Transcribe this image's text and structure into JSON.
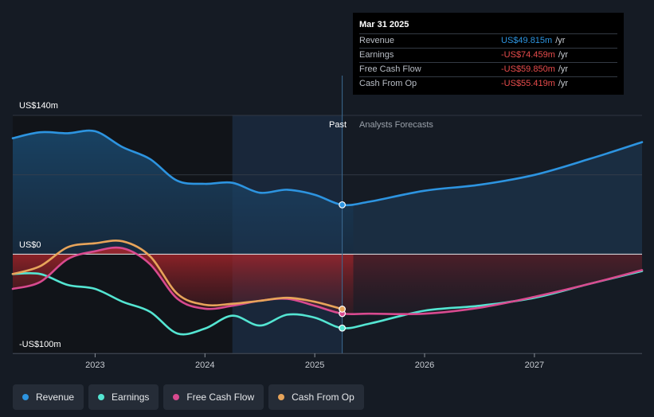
{
  "chart_data": {
    "type": "line",
    "y_axis": {
      "top_label": "US$140m",
      "zero_label": "US$0",
      "bottom_label": "-US$100m",
      "ylim": [
        -100,
        140
      ]
    },
    "x_axis": {
      "tick_labels": [
        "2023",
        "2024",
        "2025",
        "2026",
        "2027"
      ],
      "xlim": [
        2022.25,
        2027.98
      ]
    },
    "regions": {
      "past_label": "Past",
      "forecast_label": "Analysts Forecasts",
      "divider_x": 2025.25,
      "highlight_start_x": 2024.25
    },
    "grid": true,
    "legend_position": "bottom-left",
    "series": [
      {
        "name": "Revenue",
        "color": "#2d94e0",
        "fill": true,
        "points": [
          [
            2022.25,
            117
          ],
          [
            2022.5,
            123
          ],
          [
            2022.75,
            122
          ],
          [
            2023.0,
            124
          ],
          [
            2023.25,
            108
          ],
          [
            2023.5,
            96
          ],
          [
            2023.75,
            74
          ],
          [
            2024.0,
            71
          ],
          [
            2024.25,
            72
          ],
          [
            2024.5,
            62
          ],
          [
            2024.75,
            65
          ],
          [
            2025.0,
            60
          ],
          [
            2025.25,
            49.8
          ],
          [
            2025.5,
            53
          ],
          [
            2026.0,
            64
          ],
          [
            2026.5,
            70
          ],
          [
            2027.0,
            80
          ],
          [
            2027.5,
            96
          ],
          [
            2027.98,
            113
          ]
        ]
      },
      {
        "name": "Earnings",
        "color": "#54e5d2",
        "fill": false,
        "points": [
          [
            2022.25,
            -20
          ],
          [
            2022.5,
            -20
          ],
          [
            2022.75,
            -31
          ],
          [
            2023.0,
            -35
          ],
          [
            2023.25,
            -48
          ],
          [
            2023.5,
            -58
          ],
          [
            2023.75,
            -80
          ],
          [
            2024.0,
            -75
          ],
          [
            2024.25,
            -62
          ],
          [
            2024.5,
            -72
          ],
          [
            2024.75,
            -61
          ],
          [
            2025.0,
            -64
          ],
          [
            2025.25,
            -74.5
          ],
          [
            2025.5,
            -70
          ],
          [
            2026.0,
            -57
          ],
          [
            2026.5,
            -52
          ],
          [
            2027.0,
            -44
          ],
          [
            2027.5,
            -30
          ],
          [
            2027.98,
            -17
          ]
        ]
      },
      {
        "name": "Free Cash Flow",
        "color": "#d84a8f",
        "fill": false,
        "points": [
          [
            2022.25,
            -35
          ],
          [
            2022.5,
            -28
          ],
          [
            2022.75,
            -5
          ],
          [
            2023.0,
            3
          ],
          [
            2023.25,
            6
          ],
          [
            2023.5,
            -10
          ],
          [
            2023.75,
            -45
          ],
          [
            2024.0,
            -55
          ],
          [
            2024.25,
            -52
          ],
          [
            2024.5,
            -47
          ],
          [
            2024.75,
            -45
          ],
          [
            2025.0,
            -52
          ],
          [
            2025.25,
            -59.9
          ],
          [
            2025.5,
            -60
          ],
          [
            2026.0,
            -60
          ],
          [
            2026.5,
            -54
          ],
          [
            2027.0,
            -43
          ],
          [
            2027.5,
            -30
          ],
          [
            2027.98,
            -16
          ]
        ]
      },
      {
        "name": "Cash From Op",
        "color": "#e7a45a",
        "fill": false,
        "points": [
          [
            2022.25,
            -20
          ],
          [
            2022.5,
            -12
          ],
          [
            2022.75,
            7
          ],
          [
            2023.0,
            11
          ],
          [
            2023.25,
            13
          ],
          [
            2023.5,
            -2
          ],
          [
            2023.75,
            -40
          ],
          [
            2024.0,
            -51
          ],
          [
            2024.25,
            -50
          ],
          [
            2024.5,
            -47
          ],
          [
            2024.75,
            -44
          ],
          [
            2025.0,
            -48
          ],
          [
            2025.25,
            -55.4
          ]
        ]
      }
    ]
  },
  "tooltip": {
    "date": "Mar 31 2025",
    "rows": [
      {
        "name": "Revenue",
        "value": "US$49.815m",
        "unit": "/yr",
        "color": "#2d94e0"
      },
      {
        "name": "Earnings",
        "value": "-US$74.459m",
        "unit": "/yr",
        "color": "#e84c4c"
      },
      {
        "name": "Free Cash Flow",
        "value": "-US$59.850m",
        "unit": "/yr",
        "color": "#e84c4c"
      },
      {
        "name": "Cash From Op",
        "value": "-US$55.419m",
        "unit": "/yr",
        "color": "#e84c4c"
      }
    ]
  },
  "legend": [
    {
      "label": "Revenue",
      "color": "#2d94e0"
    },
    {
      "label": "Earnings",
      "color": "#54e5d2"
    },
    {
      "label": "Free Cash Flow",
      "color": "#d84a8f"
    },
    {
      "label": "Cash From Op",
      "color": "#e7a45a"
    }
  ]
}
